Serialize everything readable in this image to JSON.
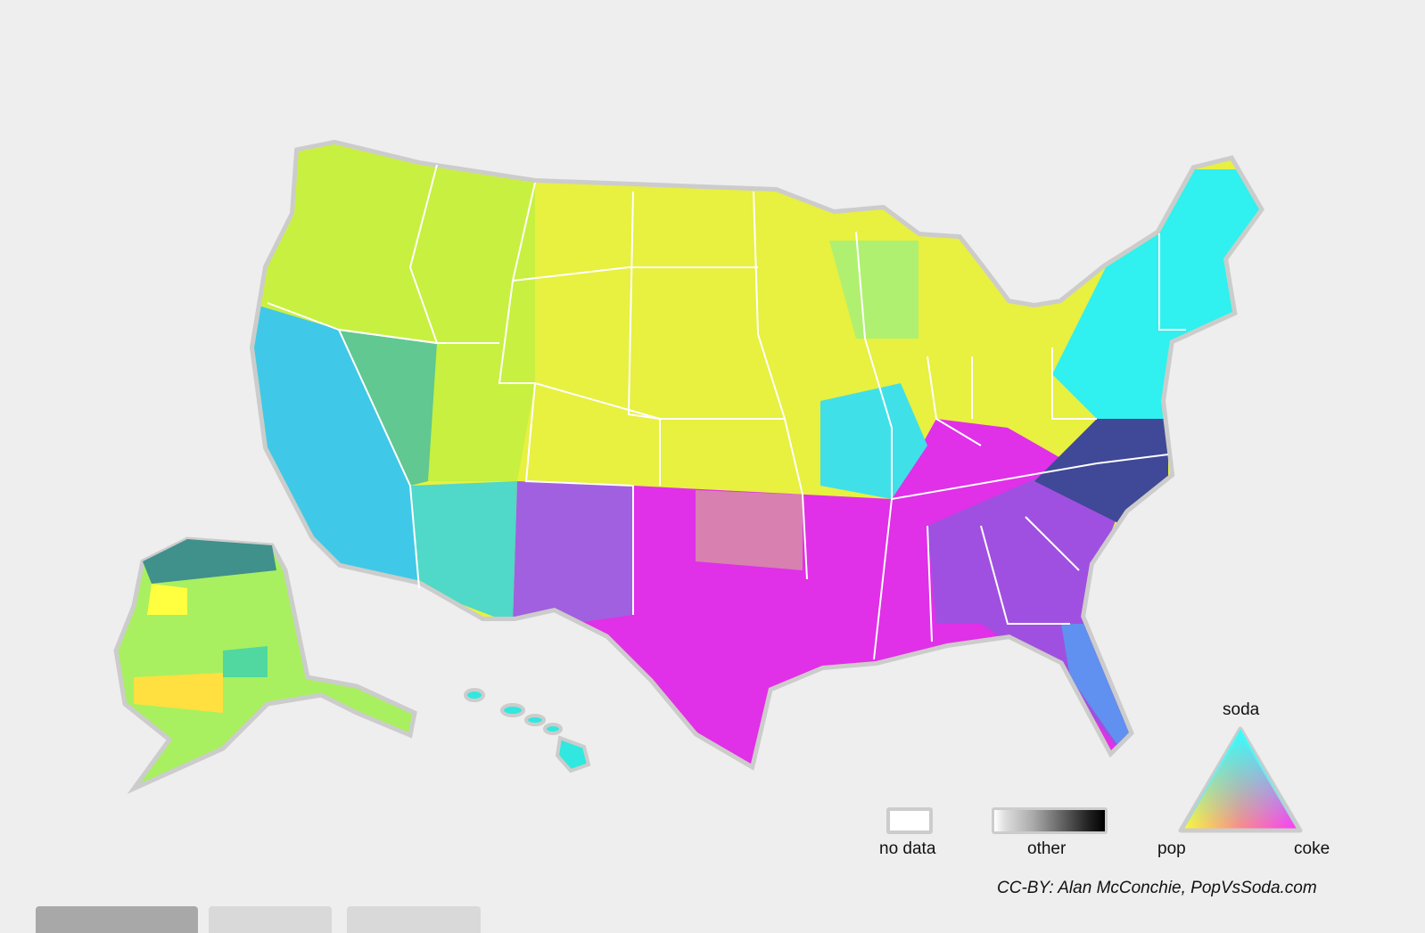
{
  "legend": {
    "no_data_label": "no data",
    "other_label": "other",
    "triangle": {
      "top_label": "soda",
      "left_label": "pop",
      "right_label": "coke"
    },
    "colors": {
      "soda": "#33ffff",
      "pop": "#ffff33",
      "coke": "#ff33ff",
      "no_data": "#ffffff",
      "other_dark": "#000000"
    }
  },
  "credit": "CC-BY: Alan McConchie, PopVsSoda.com",
  "region_colors": {
    "northwest": "#c8f040",
    "plains": "#e8f040",
    "california": "#40c8e8",
    "southwest": "#50d8c8",
    "new_mexico": "#a060e0",
    "texas_south": "#e030e8",
    "southeast": "#a050e0",
    "virginia_carolina": "#404898",
    "northeast": "#30f0f0",
    "ohio_valley": "#d0f040",
    "alaska": "#a8f060",
    "hawaii": "#30e8e0"
  },
  "bottom_tabs": [
    "",
    "",
    ""
  ]
}
